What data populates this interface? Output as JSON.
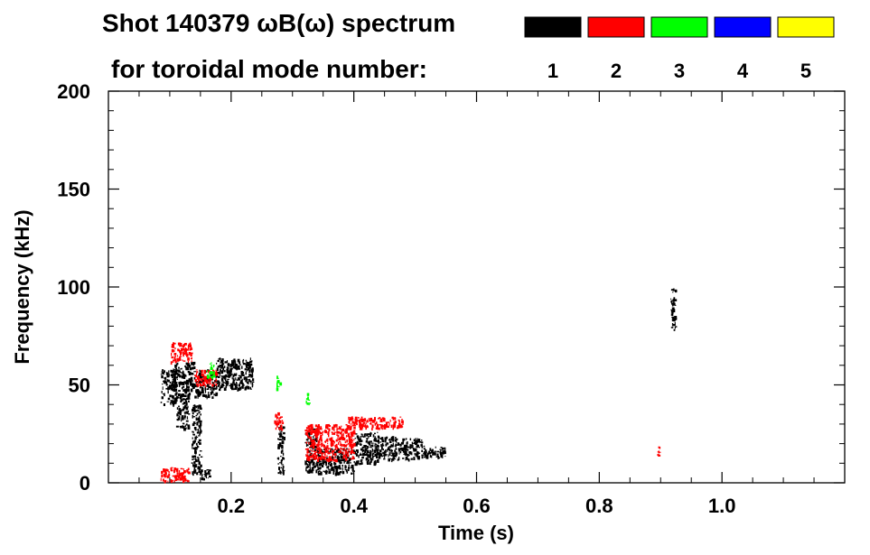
{
  "chart_data": {
    "type": "scatter",
    "title_line1": "Shot 140379 ωB(ω) spectrum",
    "title_line2": "for toroidal mode number:",
    "xlabel": "Time (s)",
    "ylabel": "Frequency (kHz)",
    "xlim": [
      0.0,
      1.2
    ],
    "ylim": [
      0,
      200
    ],
    "x_ticks": [
      "0.2",
      "0.4",
      "0.6",
      "0.8",
      "1.0"
    ],
    "y_ticks": [
      "0",
      "50",
      "100",
      "150",
      "200"
    ],
    "legend": [
      {
        "label": "1",
        "color": "#000000"
      },
      {
        "label": "2",
        "color": "#ff0000"
      },
      {
        "label": "3",
        "color": "#00ff00"
      },
      {
        "label": "4",
        "color": "#0000ff"
      },
      {
        "label": "5",
        "color": "#ffff00"
      }
    ],
    "series": [
      {
        "name": "1",
        "color": "#000000",
        "blobs": [
          {
            "x0": 0.085,
            "x1": 0.11,
            "y0": 40,
            "y1": 58
          },
          {
            "x0": 0.105,
            "x1": 0.14,
            "y0": 45,
            "y1": 62
          },
          {
            "x0": 0.14,
            "x1": 0.175,
            "y0": 44,
            "y1": 58
          },
          {
            "x0": 0.175,
            "x1": 0.235,
            "y0": 48,
            "y1": 64
          },
          {
            "x0": 0.11,
            "x1": 0.13,
            "y0": 28,
            "y1": 45
          },
          {
            "x0": 0.135,
            "x1": 0.15,
            "y0": 5,
            "y1": 40
          },
          {
            "x0": 0.15,
            "x1": 0.165,
            "y0": 2,
            "y1": 8
          },
          {
            "x0": 0.275,
            "x1": 0.285,
            "y0": 5,
            "y1": 30
          },
          {
            "x0": 0.32,
            "x1": 0.34,
            "y0": 5,
            "y1": 28
          },
          {
            "x0": 0.34,
            "x1": 0.4,
            "y0": 5,
            "y1": 18
          },
          {
            "x0": 0.4,
            "x1": 0.44,
            "y0": 10,
            "y1": 26
          },
          {
            "x0": 0.44,
            "x1": 0.47,
            "y0": 12,
            "y1": 24
          },
          {
            "x0": 0.47,
            "x1": 0.51,
            "y0": 12,
            "y1": 23
          },
          {
            "x0": 0.51,
            "x1": 0.55,
            "y0": 13,
            "y1": 19
          },
          {
            "x0": 0.916,
            "x1": 0.924,
            "y0": 78,
            "y1": 100
          }
        ]
      },
      {
        "name": "2",
        "color": "#ff0000",
        "blobs": [
          {
            "x0": 0.1,
            "x1": 0.135,
            "y0": 62,
            "y1": 72
          },
          {
            "x0": 0.14,
            "x1": 0.175,
            "y0": 50,
            "y1": 58
          },
          {
            "x0": 0.085,
            "x1": 0.13,
            "y0": 1,
            "y1": 8
          },
          {
            "x0": 0.27,
            "x1": 0.283,
            "y0": 28,
            "y1": 36
          },
          {
            "x0": 0.32,
            "x1": 0.4,
            "y0": 12,
            "y1": 30
          },
          {
            "x0": 0.39,
            "x1": 0.48,
            "y0": 28,
            "y1": 34
          },
          {
            "x0": 0.893,
            "x1": 0.898,
            "y0": 14,
            "y1": 20
          }
        ]
      },
      {
        "name": "3",
        "color": "#00ff00",
        "blobs": [
          {
            "x0": 0.16,
            "x1": 0.172,
            "y0": 54,
            "y1": 62
          },
          {
            "x0": 0.273,
            "x1": 0.279,
            "y0": 48,
            "y1": 55
          },
          {
            "x0": 0.32,
            "x1": 0.326,
            "y0": 40,
            "y1": 46
          }
        ]
      },
      {
        "name": "4",
        "color": "#0000ff",
        "blobs": []
      },
      {
        "name": "5",
        "color": "#ffff00",
        "blobs": []
      }
    ],
    "grid": false,
    "legend_position": "top-right"
  }
}
